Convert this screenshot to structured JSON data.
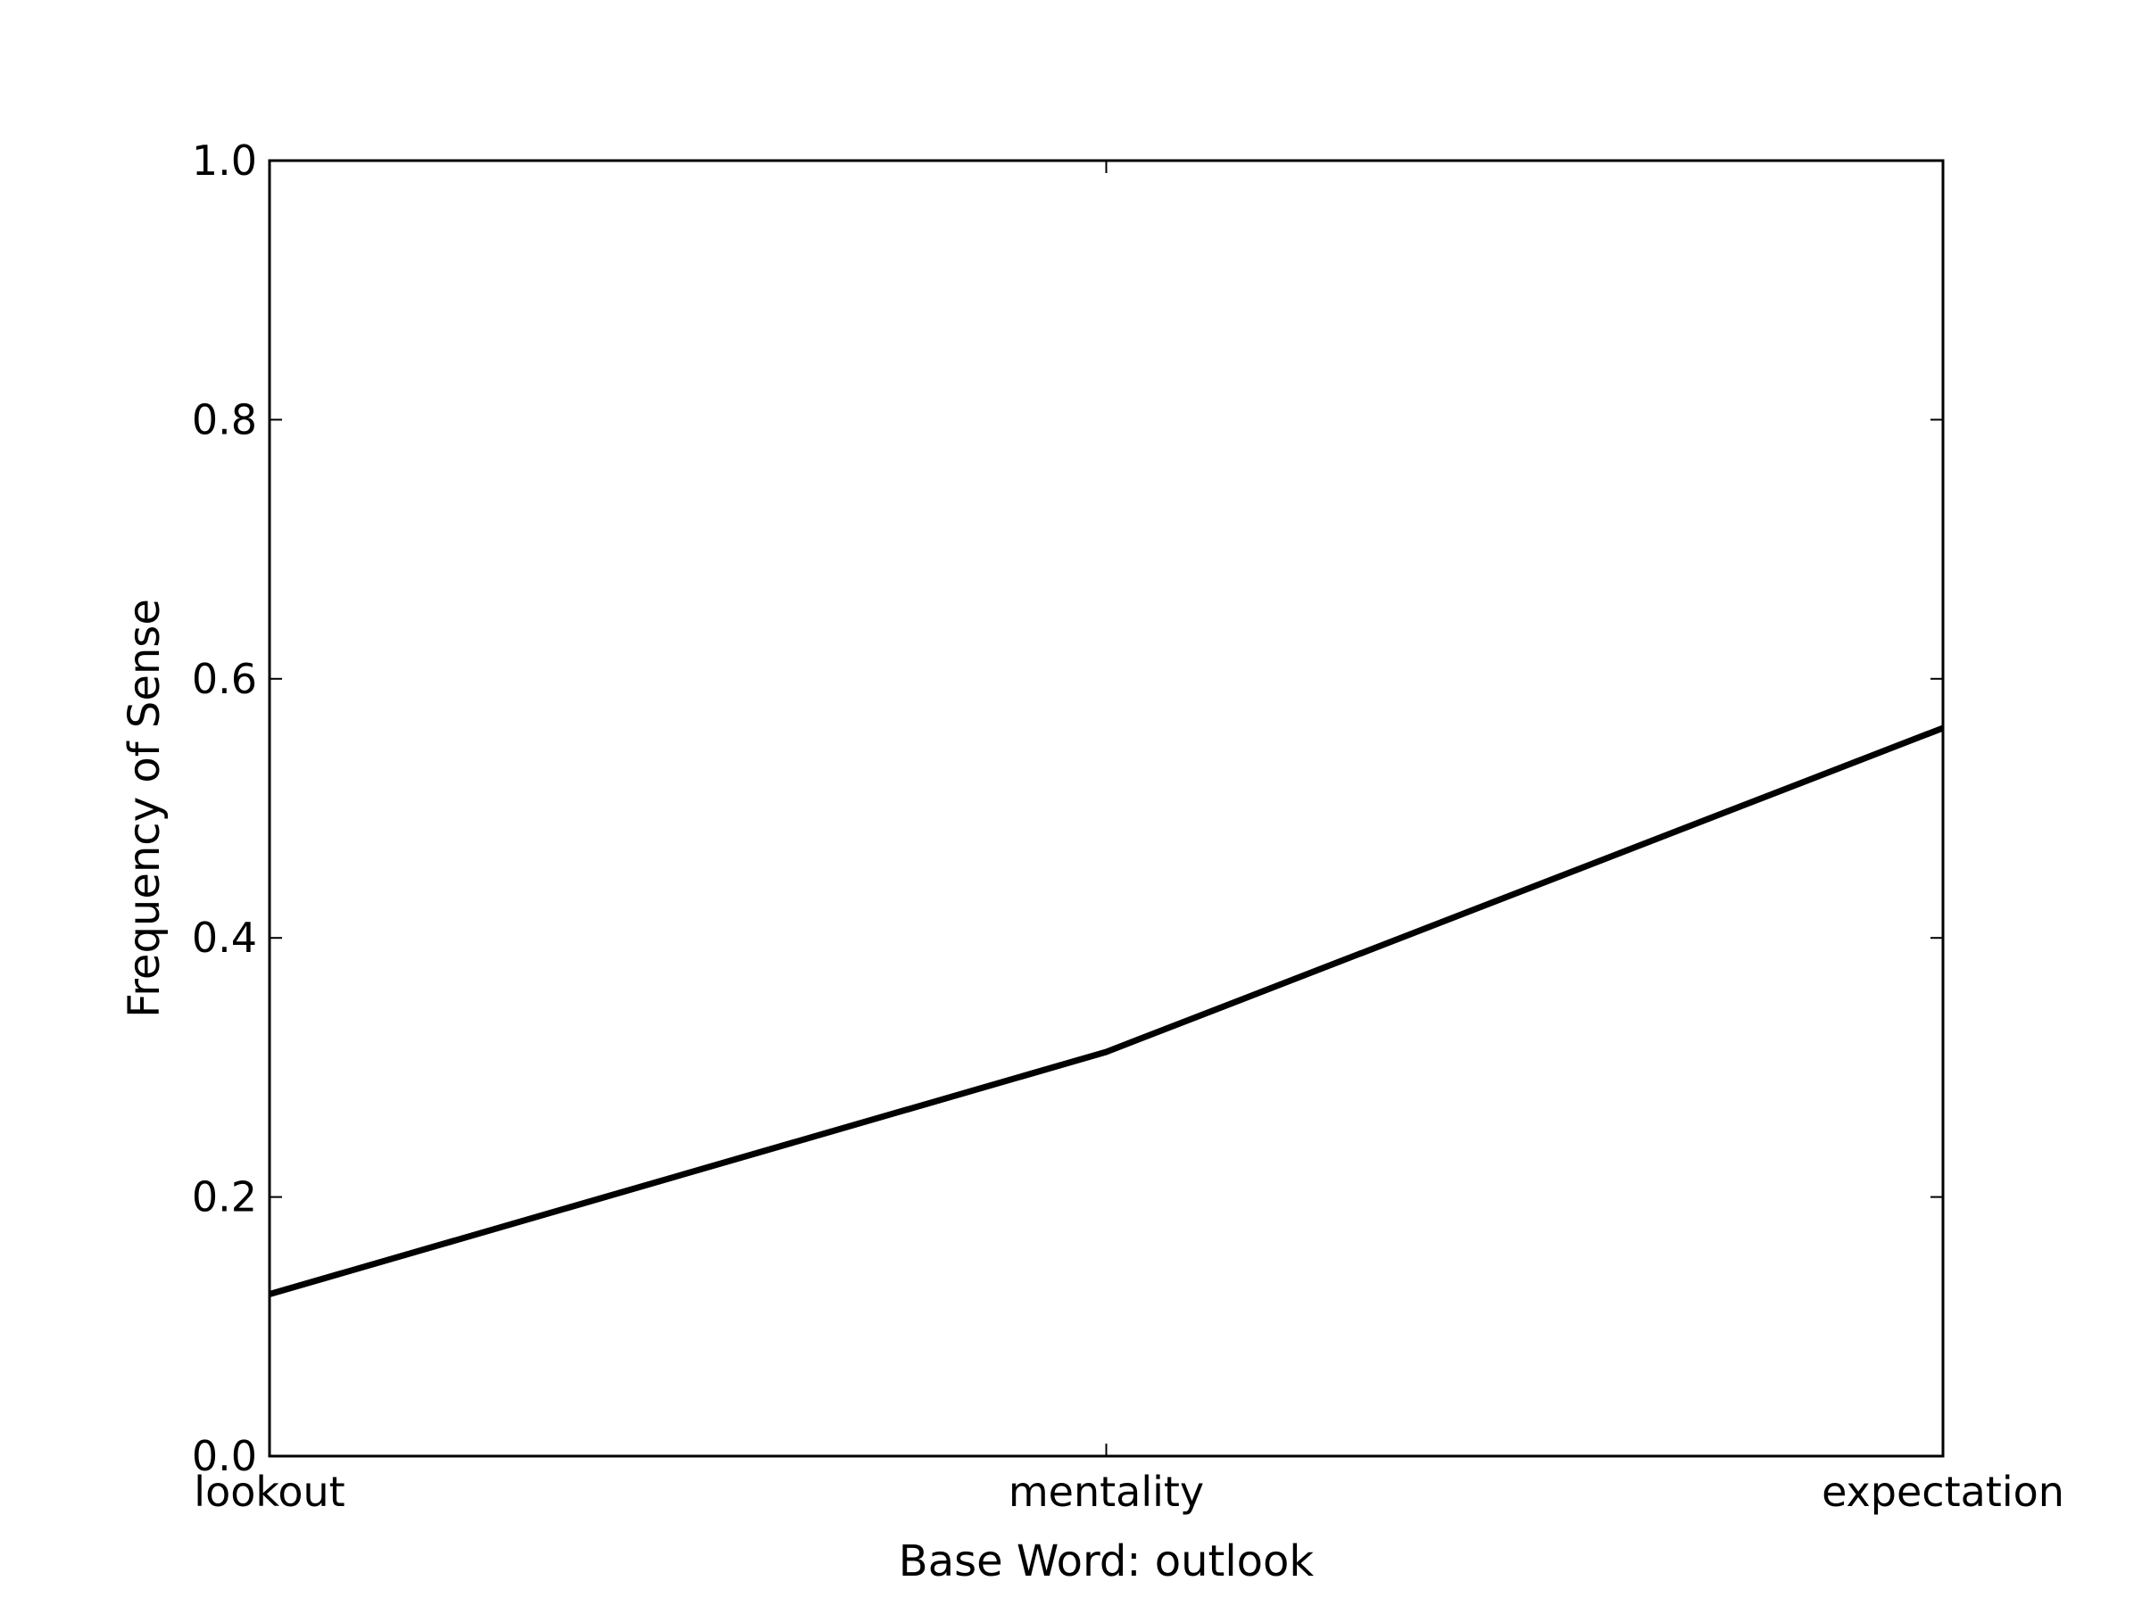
{
  "chart_data": {
    "type": "line",
    "title": "",
    "xlabel": "Base Word: outlook",
    "ylabel": "Frequency of Sense",
    "categories": [
      "lookout",
      "mentality",
      "expectation"
    ],
    "series": [
      {
        "values": [
          0.125,
          0.312,
          0.562
        ],
        "color": "#000000"
      }
    ],
    "ylim": [
      0.0,
      1.0
    ],
    "yticks": [
      "0.0",
      "0.2",
      "0.4",
      "0.6",
      "0.8",
      "1.0"
    ],
    "grid": false,
    "legend": "none"
  }
}
